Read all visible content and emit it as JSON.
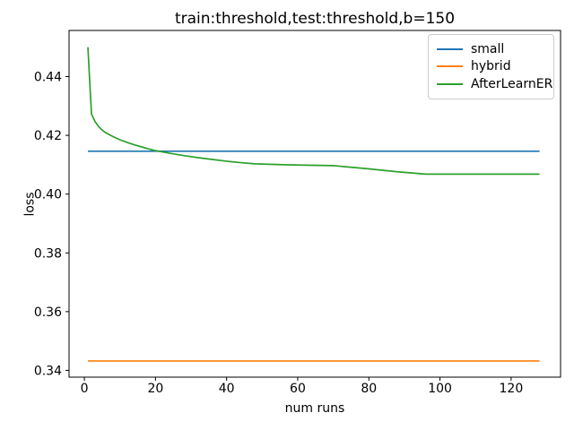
{
  "chart_data": {
    "type": "line",
    "title": "train:threshold,test:threshold,b=150",
    "xlabel": "num runs",
    "ylabel": "loss",
    "xlim": [
      -4.3,
      133.9
    ],
    "ylim": [
      0.3377,
      0.4557
    ],
    "xticks": [
      0,
      20,
      40,
      60,
      80,
      100,
      120
    ],
    "yticks": [
      0.34,
      0.36,
      0.38,
      0.4,
      0.42,
      0.44
    ],
    "grid": false,
    "legend_position": "upper right",
    "axis_color": "#000000",
    "series": [
      {
        "name": "small",
        "color": "#1f77b4",
        "x": [
          1,
          128
        ],
        "y": [
          0.4146,
          0.4146
        ]
      },
      {
        "name": "hybrid",
        "color": "#ff7f0e",
        "x": [
          1,
          128
        ],
        "y": [
          0.3432,
          0.3432
        ]
      },
      {
        "name": "AfterLearnER",
        "color": "#2ca02c",
        "x": [
          1,
          2,
          3,
          4,
          5,
          6,
          8,
          10,
          12,
          14,
          16,
          18,
          20,
          24,
          28,
          32,
          36,
          40,
          44,
          48,
          56,
          64,
          70,
          80,
          88,
          96,
          112,
          128
        ],
        "y": [
          0.45,
          0.4273,
          0.4247,
          0.423,
          0.4218,
          0.4209,
          0.4196,
          0.4185,
          0.4176,
          0.4168,
          0.4161,
          0.4154,
          0.4148,
          0.4139,
          0.4131,
          0.4124,
          0.4118,
          0.4112,
          0.4107,
          0.4103,
          0.41,
          0.4098,
          0.4097,
          0.4086,
          0.4076,
          0.4068,
          0.4068,
          0.4068
        ]
      }
    ]
  }
}
